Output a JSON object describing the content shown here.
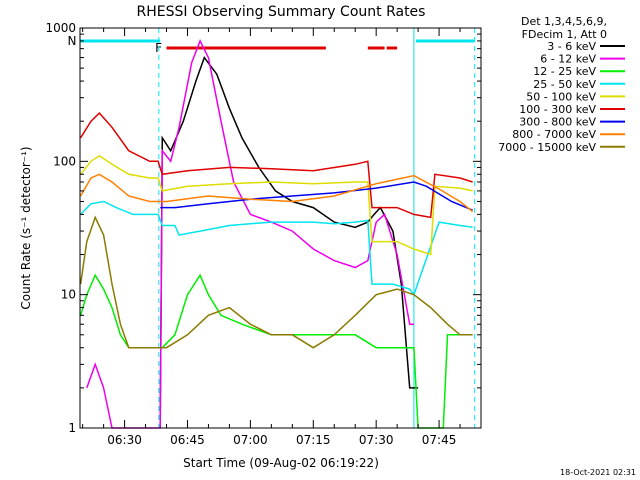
{
  "chart_data": {
    "type": "line",
    "title": "RHESSI Observing Summary Count Rates",
    "xlabel": "Start Time (09-Aug-02 06:19:22)",
    "ylabel": "Count Rate (s⁻¹ detector⁻¹)",
    "yscale": "log",
    "ylim": [
      1,
      1000
    ],
    "xlim": [
      "06:19:22",
      "07:55:00"
    ],
    "yticks": [
      {
        "value": 1,
        "label": "1"
      },
      {
        "value": 10,
        "label": "10"
      },
      {
        "value": 100,
        "label": "100"
      },
      {
        "value": 1000,
        "label": "1000"
      }
    ],
    "xticks": [
      "06:30",
      "06:45",
      "07:00",
      "07:15",
      "07:30",
      "07:45"
    ],
    "legend_header": [
      "Det 1,3,4,5,6,9,",
      "FDecim 1, Att 0"
    ],
    "legend_position": "right",
    "flags": [
      {
        "label": "N",
        "color": "#00e5ee",
        "segments": [
          [
            "06:19:22",
            "06:38:30"
          ],
          [
            "07:39:30",
            "07:53:30"
          ]
        ]
      },
      {
        "label": "F",
        "color": "#e00000",
        "segments": [
          [
            "06:40:00",
            "07:18:00"
          ],
          [
            "07:28:00",
            "07:32:00"
          ],
          [
            "07:32:30",
            "07:35:00"
          ]
        ]
      }
    ],
    "night_boundaries": [
      "06:38:10",
      "07:53:30"
    ],
    "day_boundary": "07:39:00",
    "series": [
      {
        "name": "3 - 6 keV",
        "color": "#000000",
        "points": [
          [
            "06:38:30",
            1
          ],
          [
            "06:39:00",
            150
          ],
          [
            "06:41:00",
            120
          ],
          [
            "06:44:00",
            200
          ],
          [
            "06:47:00",
            400
          ],
          [
            "06:49:00",
            600
          ],
          [
            "06:52:00",
            450
          ],
          [
            "06:55:00",
            250
          ],
          [
            "06:58:00",
            150
          ],
          [
            "07:02:00",
            90
          ],
          [
            "07:06:00",
            60
          ],
          [
            "07:10:00",
            50
          ],
          [
            "07:15:00",
            45
          ],
          [
            "07:20:00",
            35
          ],
          [
            "07:25:00",
            32
          ],
          [
            "07:28:00",
            35
          ],
          [
            "07:29:30",
            40
          ],
          [
            "07:31:00",
            45
          ],
          [
            "07:34:00",
            30
          ],
          [
            "07:36:00",
            12
          ],
          [
            "07:38:00",
            2
          ],
          [
            "07:40:00",
            2
          ]
        ]
      },
      {
        "name": "6 - 12 keV",
        "color": "#ee00ee",
        "points": [
          [
            "06:21:00",
            2
          ],
          [
            "06:23:00",
            3
          ],
          [
            "06:25:00",
            2
          ],
          [
            "06:27:00",
            1
          ],
          [
            "06:38:30",
            1
          ],
          [
            "06:39:00",
            120
          ],
          [
            "06:41:00",
            100
          ],
          [
            "06:43:00",
            180
          ],
          [
            "06:46:00",
            550
          ],
          [
            "06:48:00",
            800
          ],
          [
            "06:50:00",
            600
          ],
          [
            "06:53:00",
            200
          ],
          [
            "06:56:00",
            70
          ],
          [
            "07:00:00",
            40
          ],
          [
            "07:05:00",
            35
          ],
          [
            "07:10:00",
            30
          ],
          [
            "07:15:00",
            22
          ],
          [
            "07:20:00",
            18
          ],
          [
            "07:25:00",
            16
          ],
          [
            "07:28:00",
            18
          ],
          [
            "07:30:00",
            35
          ],
          [
            "07:32:00",
            40
          ],
          [
            "07:35:00",
            20
          ],
          [
            "07:38:00",
            6
          ],
          [
            "07:39:00",
            6
          ]
        ]
      },
      {
        "name": "12 - 25 keV",
        "color": "#00ee00",
        "points": [
          [
            "06:19:30",
            7
          ],
          [
            "06:21:00",
            10
          ],
          [
            "06:23:00",
            14
          ],
          [
            "06:25:00",
            11
          ],
          [
            "06:27:00",
            8
          ],
          [
            "06:29:00",
            5
          ],
          [
            "06:31:00",
            4
          ],
          [
            "06:38:00",
            4
          ],
          [
            "06:39:00",
            4
          ],
          [
            "06:42:00",
            5
          ],
          [
            "06:45:00",
            10
          ],
          [
            "06:48:00",
            14
          ],
          [
            "06:50:00",
            10
          ],
          [
            "06:53:00",
            7
          ],
          [
            "06:58:00",
            6
          ],
          [
            "07:05:00",
            5
          ],
          [
            "07:15:00",
            5
          ],
          [
            "07:25:00",
            5
          ],
          [
            "07:30:00",
            4
          ],
          [
            "07:35:00",
            4
          ],
          [
            "07:39:00",
            4
          ],
          [
            "07:40:00",
            1
          ],
          [
            "07:46:00",
            1
          ],
          [
            "07:47:00",
            5
          ],
          [
            "07:53:00",
            5
          ]
        ]
      },
      {
        "name": "25 - 50 keV",
        "color": "#00e5ee",
        "points": [
          [
            "06:19:30",
            40
          ],
          [
            "06:22:00",
            48
          ],
          [
            "06:25:00",
            50
          ],
          [
            "06:28:00",
            45
          ],
          [
            "06:32:00",
            40
          ],
          [
            "06:36:00",
            40
          ],
          [
            "06:38:00",
            40
          ],
          [
            "06:39:00",
            33
          ],
          [
            "06:42:00",
            33
          ],
          [
            "06:43:00",
            28
          ],
          [
            "06:48:00",
            30
          ],
          [
            "06:55:00",
            33
          ],
          [
            "07:05:00",
            35
          ],
          [
            "07:15:00",
            35
          ],
          [
            "07:20:00",
            34
          ],
          [
            "07:25:00",
            35
          ],
          [
            "07:28:00",
            36
          ],
          [
            "07:29:00",
            12
          ],
          [
            "07:34:00",
            12
          ],
          [
            "07:38:00",
            11
          ],
          [
            "07:39:00",
            10
          ],
          [
            "07:45:00",
            35
          ],
          [
            "07:50:00",
            33
          ],
          [
            "07:53:00",
            32
          ]
        ]
      },
      {
        "name": "50 - 100 keV",
        "color": "#dddd00",
        "points": [
          [
            "06:19:30",
            80
          ],
          [
            "06:22:00",
            100
          ],
          [
            "06:24:00",
            110
          ],
          [
            "06:27:00",
            95
          ],
          [
            "06:31:00",
            80
          ],
          [
            "06:36:00",
            75
          ],
          [
            "06:38:00",
            75
          ],
          [
            "06:39:00",
            60
          ],
          [
            "06:45:00",
            65
          ],
          [
            "06:55:00",
            68
          ],
          [
            "07:05:00",
            70
          ],
          [
            "07:15:00",
            68
          ],
          [
            "07:25:00",
            70
          ],
          [
            "07:28:00",
            70
          ],
          [
            "07:29:00",
            25
          ],
          [
            "07:35:00",
            25
          ],
          [
            "07:39:00",
            22
          ],
          [
            "07:43:00",
            20
          ],
          [
            "07:44:00",
            65
          ],
          [
            "07:50:00",
            63
          ],
          [
            "07:53:00",
            60
          ]
        ]
      },
      {
        "name": "100 - 300 keV",
        "color": "#e00000",
        "points": [
          [
            "06:19:30",
            150
          ],
          [
            "06:22:00",
            200
          ],
          [
            "06:24:00",
            230
          ],
          [
            "06:27:00",
            180
          ],
          [
            "06:31:00",
            120
          ],
          [
            "06:36:00",
            100
          ],
          [
            "06:38:00",
            100
          ],
          [
            "06:39:00",
            80
          ],
          [
            "06:45:00",
            85
          ],
          [
            "06:55:00",
            90
          ],
          [
            "07:05:00",
            88
          ],
          [
            "07:15:00",
            85
          ],
          [
            "07:25:00",
            95
          ],
          [
            "07:28:00",
            100
          ],
          [
            "07:29:00",
            45
          ],
          [
            "07:35:00",
            45
          ],
          [
            "07:39:00",
            40
          ],
          [
            "07:43:00",
            38
          ],
          [
            "07:44:00",
            80
          ],
          [
            "07:50:00",
            75
          ],
          [
            "07:53:00",
            70
          ]
        ]
      },
      {
        "name": "300 - 800 keV",
        "color": "#0000ee",
        "points": [
          [
            "06:38:30",
            45
          ],
          [
            "06:42:00",
            45
          ],
          [
            "06:50:00",
            48
          ],
          [
            "07:00:00",
            52
          ],
          [
            "07:10:00",
            55
          ],
          [
            "07:20:00",
            58
          ],
          [
            "07:30:00",
            63
          ],
          [
            "07:39:00",
            70
          ],
          [
            "07:42:00",
            65
          ],
          [
            "07:48:00",
            50
          ],
          [
            "07:53:00",
            43
          ]
        ]
      },
      {
        "name": "800 - 7000 keV",
        "color": "#ff8000",
        "points": [
          [
            "06:19:30",
            55
          ],
          [
            "06:22:00",
            75
          ],
          [
            "06:24:00",
            80
          ],
          [
            "06:27:00",
            70
          ],
          [
            "06:31:00",
            55
          ],
          [
            "06:36:00",
            50
          ],
          [
            "06:40:00",
            50
          ],
          [
            "06:50:00",
            55
          ],
          [
            "07:00:00",
            52
          ],
          [
            "07:10:00",
            50
          ],
          [
            "07:20:00",
            55
          ],
          [
            "07:30:00",
            68
          ],
          [
            "07:39:00",
            78
          ],
          [
            "07:45:00",
            62
          ],
          [
            "07:50:00",
            50
          ],
          [
            "07:53:00",
            42
          ]
        ]
      },
      {
        "name": "7000 - 15000 keV",
        "color": "#8b7a00",
        "points": [
          [
            "06:19:30",
            12
          ],
          [
            "06:21:00",
            25
          ],
          [
            "06:23:00",
            38
          ],
          [
            "06:25:00",
            28
          ],
          [
            "06:27:00",
            12
          ],
          [
            "06:29:00",
            6
          ],
          [
            "06:31:00",
            4
          ],
          [
            "06:38:00",
            4
          ],
          [
            "06:40:00",
            4
          ],
          [
            "06:45:00",
            5
          ],
          [
            "06:50:00",
            7
          ],
          [
            "06:55:00",
            8
          ],
          [
            "07:00:00",
            6
          ],
          [
            "07:05:00",
            5
          ],
          [
            "07:10:00",
            5
          ],
          [
            "07:15:00",
            4
          ],
          [
            "07:20:00",
            5
          ],
          [
            "07:25:00",
            7
          ],
          [
            "07:30:00",
            10
          ],
          [
            "07:35:00",
            11
          ],
          [
            "07:39:00",
            10
          ],
          [
            "07:43:00",
            8
          ],
          [
            "07:47:00",
            6
          ],
          [
            "07:50:00",
            5
          ],
          [
            "07:53:00",
            5
          ]
        ]
      }
    ]
  },
  "footer": {
    "timestamp": "18-Oct-2021 02:31"
  }
}
